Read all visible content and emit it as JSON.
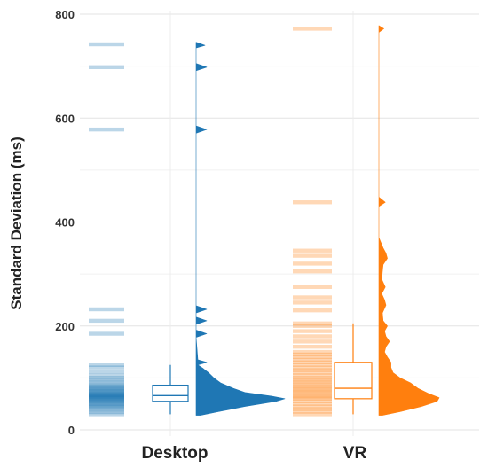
{
  "chart_data": {
    "type": "raincloud",
    "ylabel": "Standard Deviation (ms)",
    "ylim": [
      0,
      800
    ],
    "yticks": [
      0,
      200,
      400,
      600,
      800
    ],
    "yticks_text": [
      "0",
      "200",
      "400",
      "600",
      "800"
    ],
    "grid": true,
    "legend": "none",
    "series": [
      {
        "category": "Desktop",
        "color": "#1f77b4",
        "points": [
          30,
          34,
          38,
          41,
          44,
          46,
          48,
          50,
          52,
          54,
          55,
          57,
          58,
          60,
          61,
          62,
          63,
          64,
          65,
          66,
          67,
          68,
          69,
          70,
          72,
          74,
          75,
          77,
          79,
          81,
          83,
          85,
          88,
          92,
          96,
          100,
          105,
          112,
          120,
          125,
          185,
          210,
          232,
          578,
          698,
          742
        ],
        "box": {
          "min": 30,
          "q1": 55,
          "median": 66,
          "q3": 86,
          "max": 125
        },
        "density": [
          [
            28,
            0.05
          ],
          [
            35,
            0.25
          ],
          [
            45,
            0.55
          ],
          [
            55,
            0.9
          ],
          [
            60,
            1.0
          ],
          [
            65,
            0.85
          ],
          [
            72,
            0.55
          ],
          [
            80,
            0.42
          ],
          [
            90,
            0.28
          ],
          [
            100,
            0.2
          ],
          [
            110,
            0.14
          ],
          [
            118,
            0.08
          ],
          [
            125,
            0.02
          ],
          [
            130,
            0.12
          ],
          [
            135,
            0.02
          ],
          [
            178,
            0.0
          ],
          [
            185,
            0.12
          ],
          [
            192,
            0.0
          ],
          [
            203,
            0.0
          ],
          [
            210,
            0.12
          ],
          [
            217,
            0.0
          ],
          [
            225,
            0.0
          ],
          [
            232,
            0.12
          ],
          [
            239,
            0.0
          ],
          [
            571,
            0.0
          ],
          [
            578,
            0.12
          ],
          [
            585,
            0.0
          ],
          [
            691,
            0.0
          ],
          [
            698,
            0.12
          ],
          [
            705,
            0.0
          ],
          [
            735,
            0.0
          ],
          [
            740,
            0.1
          ],
          [
            746,
            0.0
          ]
        ]
      },
      {
        "category": "VR",
        "color": "#ff7f0e",
        "points": [
          30,
          35,
          40,
          45,
          50,
          55,
          60,
          63,
          66,
          70,
          73,
          77,
          80,
          84,
          88,
          92,
          96,
          100,
          105,
          110,
          115,
          120,
          125,
          130,
          135,
          140,
          145,
          150,
          160,
          170,
          180,
          190,
          200,
          205,
          230,
          245,
          255,
          275,
          305,
          320,
          335,
          345,
          438,
          772
        ],
        "box": {
          "min": 30,
          "q1": 60,
          "median": 80,
          "q3": 130,
          "max": 205
        },
        "density": [
          [
            28,
            0.05
          ],
          [
            35,
            0.3
          ],
          [
            45,
            0.6
          ],
          [
            55,
            0.82
          ],
          [
            62,
            0.85
          ],
          [
            70,
            0.7
          ],
          [
            80,
            0.55
          ],
          [
            90,
            0.45
          ],
          [
            100,
            0.3
          ],
          [
            110,
            0.2
          ],
          [
            120,
            0.17
          ],
          [
            130,
            0.17
          ],
          [
            140,
            0.12
          ],
          [
            150,
            0.08
          ],
          [
            160,
            0.1
          ],
          [
            170,
            0.15
          ],
          [
            180,
            0.1
          ],
          [
            190,
            0.08
          ],
          [
            200,
            0.12
          ],
          [
            210,
            0.06
          ],
          [
            225,
            0.05
          ],
          [
            240,
            0.1
          ],
          [
            250,
            0.08
          ],
          [
            262,
            0.04
          ],
          [
            275,
            0.09
          ],
          [
            290,
            0.04
          ],
          [
            305,
            0.05
          ],
          [
            318,
            0.06
          ],
          [
            330,
            0.12
          ],
          [
            340,
            0.1
          ],
          [
            350,
            0.06
          ],
          [
            360,
            0.03
          ],
          [
            370,
            0.0
          ],
          [
            430,
            0.0
          ],
          [
            438,
            0.09
          ],
          [
            448,
            0.0
          ],
          [
            765,
            0.0
          ],
          [
            772,
            0.07
          ],
          [
            778,
            0.0
          ]
        ]
      }
    ]
  }
}
